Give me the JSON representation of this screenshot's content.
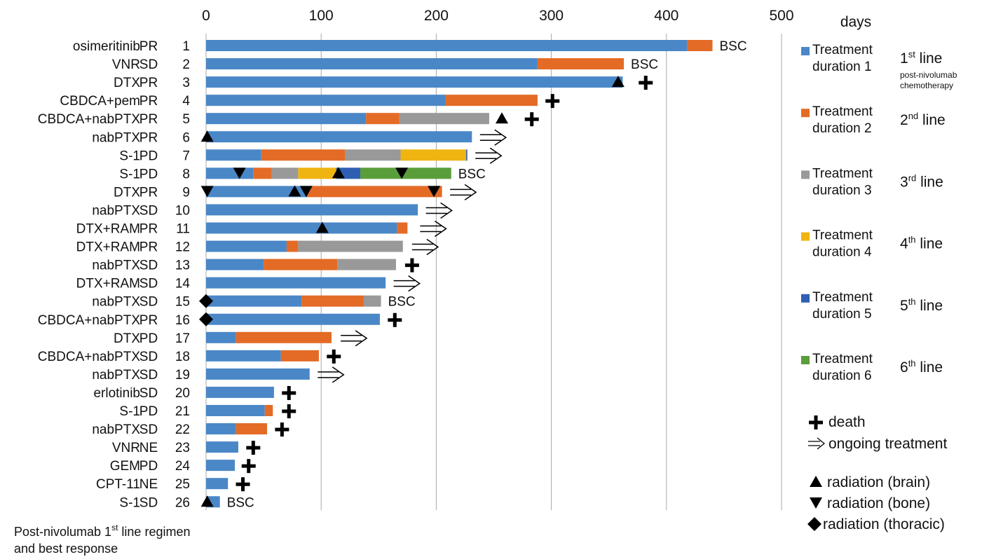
{
  "chart_data": {
    "type": "bar",
    "orientation": "horizontal",
    "stacked": true,
    "grid": true,
    "xlim": [
      0,
      500
    ],
    "x_ticks": [
      0,
      100,
      200,
      300,
      400,
      500
    ],
    "x_unit_label": "days",
    "footnote_lines": [
      {
        "before": "Post-nivolumab 1",
        "sup": "st",
        "after": " line regimen"
      },
      {
        "before": "and best response",
        "sup": "",
        "after": ""
      }
    ],
    "series": [
      {
        "name_line1": "Treatment",
        "name_line2": "duration 1",
        "color": "#4a87c7",
        "line_text": "1",
        "line_sup": "st",
        "line_suffix": " line",
        "line_note_1": "post-nivolumab",
        "line_note_2": "chemotherapy"
      },
      {
        "name_line1": "Treatment",
        "name_line2": "duration 2",
        "color": "#e36b26",
        "line_text": "2",
        "line_sup": "nd",
        "line_suffix": " line"
      },
      {
        "name_line1": "Treatment",
        "name_line2": "duration 3",
        "color": "#999999",
        "line_text": "3",
        "line_sup": "rd",
        "line_suffix": " line"
      },
      {
        "name_line1": "Treatment",
        "name_line2": "duration 4",
        "color": "#f0b411",
        "line_text": "4",
        "line_sup": "th",
        "line_suffix": " line"
      },
      {
        "name_line1": "Treatment",
        "name_line2": "duration 5",
        "color": "#2f5fb2",
        "line_text": "5",
        "line_sup": "th",
        "line_suffix": " line"
      },
      {
        "name_line1": "Treatment",
        "name_line2": "duration 6",
        "color": "#5a9e3c",
        "line_text": "6",
        "line_sup": "th",
        "line_suffix": " line"
      }
    ],
    "symbol_legend": [
      {
        "symbol": "plus",
        "label": "death"
      },
      {
        "symbol": "arrow",
        "label": "ongoing treatment"
      },
      {
        "symbol": "tri-up",
        "label": "radiation (brain)"
      },
      {
        "symbol": "tri-down",
        "label": "radiation (bone)"
      },
      {
        "symbol": "diamond",
        "label": "radiation (thoracic)"
      }
    ],
    "patients": [
      {
        "regimen": "osimeritinib",
        "response": "PR",
        "id": "1",
        "durations": [
          418,
          22
        ],
        "end": "BSC",
        "markers": []
      },
      {
        "regimen": "VNR",
        "response": "SD",
        "id": "2",
        "durations": [
          288,
          75
        ],
        "end": "BSC",
        "markers": []
      },
      {
        "regimen": "DTX",
        "response": "PR",
        "id": "3",
        "durations": [
          362
        ],
        "end": "death",
        "end_x": 382,
        "markers": [
          {
            "type": "tri-up",
            "x": 358
          }
        ]
      },
      {
        "regimen": "CBDCA+pem",
        "response": "PR",
        "id": "4",
        "durations": [
          208,
          80
        ],
        "end": "death",
        "end_x": 301,
        "markers": []
      },
      {
        "regimen": "CBDCA+nabPTX",
        "response": "PR",
        "id": "5",
        "durations": [
          139,
          29,
          78
        ],
        "end": "death",
        "end_x": 283,
        "markers": [
          {
            "type": "tri-up",
            "x": 257
          }
        ]
      },
      {
        "regimen": "nabPTX",
        "response": "PR",
        "id": "6",
        "durations": [
          231
        ],
        "end": "ongoing",
        "end_x": 238,
        "markers": [
          {
            "type": "tri-up",
            "x": 1
          }
        ]
      },
      {
        "regimen": "S-1",
        "response": "PD",
        "id": "7",
        "durations": [
          48,
          73,
          48,
          57,
          1
        ],
        "end": "ongoing",
        "end_x": 234,
        "markers": []
      },
      {
        "regimen": "S-1",
        "response": "PD",
        "id": "8",
        "durations": [
          41,
          16,
          23,
          33,
          21,
          79
        ],
        "end": "BSC",
        "markers": [
          {
            "type": "tri-down",
            "x": 29
          },
          {
            "type": "tri-up",
            "x": 115
          },
          {
            "type": "tri-down",
            "x": 170
          }
        ]
      },
      {
        "regimen": "DTX",
        "response": "PR",
        "id": "9",
        "durations": [
          88,
          117
        ],
        "end": "ongoing",
        "end_x": 212,
        "markers": [
          {
            "type": "tri-down",
            "x": 1
          },
          {
            "type": "tri-up",
            "x": 77
          },
          {
            "type": "tri-down",
            "x": 87
          },
          {
            "type": "tri-down",
            "x": 198
          }
        ]
      },
      {
        "regimen": "nabPTX",
        "response": "SD",
        "id": "10",
        "durations": [
          184
        ],
        "end": "ongoing",
        "end_x": 191,
        "markers": []
      },
      {
        "regimen": "DTX+RAM",
        "response": "PR",
        "id": "11",
        "durations": [
          166,
          9
        ],
        "end": "ongoing",
        "end_x": 186,
        "markers": [
          {
            "type": "tri-up",
            "x": 101
          }
        ]
      },
      {
        "regimen": "DTX+RAM",
        "response": "PR",
        "id": "12",
        "durations": [
          70,
          10,
          91
        ],
        "end": "ongoing",
        "end_x": 179,
        "markers": []
      },
      {
        "regimen": "nabPTX",
        "response": "SD",
        "id": "13",
        "durations": [
          50,
          64,
          51
        ],
        "end": "death",
        "end_x": 179,
        "markers": []
      },
      {
        "regimen": "DTX+RAM",
        "response": "SD",
        "id": "14",
        "durations": [
          156
        ],
        "end": "ongoing",
        "end_x": 163,
        "markers": []
      },
      {
        "regimen": "nabPTX",
        "response": "SD",
        "id": "15",
        "durations": [
          83,
          54,
          15
        ],
        "end": "BSC",
        "markers": [
          {
            "type": "diamond",
            "x": 0
          }
        ]
      },
      {
        "regimen": "CBDCA+nabPTX",
        "response": "PR",
        "id": "16",
        "durations": [
          151
        ],
        "end": "death",
        "end_x": 164,
        "markers": [
          {
            "type": "diamond",
            "x": 0
          }
        ]
      },
      {
        "regimen": "DTX",
        "response": "PD",
        "id": "17",
        "durations": [
          26,
          83
        ],
        "end": "ongoing",
        "end_x": 117,
        "markers": []
      },
      {
        "regimen": "CBDCA+nabPTX",
        "response": "SD",
        "id": "18",
        "durations": [
          65,
          33
        ],
        "end": "death",
        "end_x": 111,
        "markers": []
      },
      {
        "regimen": "nabPTX",
        "response": "SD",
        "id": "19",
        "durations": [
          90
        ],
        "end": "ongoing",
        "end_x": 97,
        "markers": []
      },
      {
        "regimen": "erlotinib",
        "response": "SD",
        "id": "20",
        "durations": [
          59
        ],
        "end": "death",
        "end_x": 72,
        "markers": []
      },
      {
        "regimen": "S-1",
        "response": "PD",
        "id": "21",
        "durations": [
          51,
          7
        ],
        "end": "death",
        "end_x": 72,
        "markers": []
      },
      {
        "regimen": "nabPTX",
        "response": "SD",
        "id": "22",
        "durations": [
          26,
          27
        ],
        "end": "death",
        "end_x": 66,
        "markers": []
      },
      {
        "regimen": "VNR",
        "response": "NE",
        "id": "23",
        "durations": [
          28
        ],
        "end": "death",
        "end_x": 41,
        "markers": []
      },
      {
        "regimen": "GEM",
        "response": "PD",
        "id": "24",
        "durations": [
          25
        ],
        "end": "death",
        "end_x": 37,
        "markers": []
      },
      {
        "regimen": "CPT-11",
        "response": "NE",
        "id": "25",
        "durations": [
          19
        ],
        "end": "death",
        "end_x": 32,
        "markers": []
      },
      {
        "regimen": "S-1",
        "response": "SD",
        "id": "26",
        "durations": [
          12
        ],
        "end": "BSC",
        "markers": [
          {
            "type": "tri-up",
            "x": 1
          }
        ]
      }
    ]
  }
}
